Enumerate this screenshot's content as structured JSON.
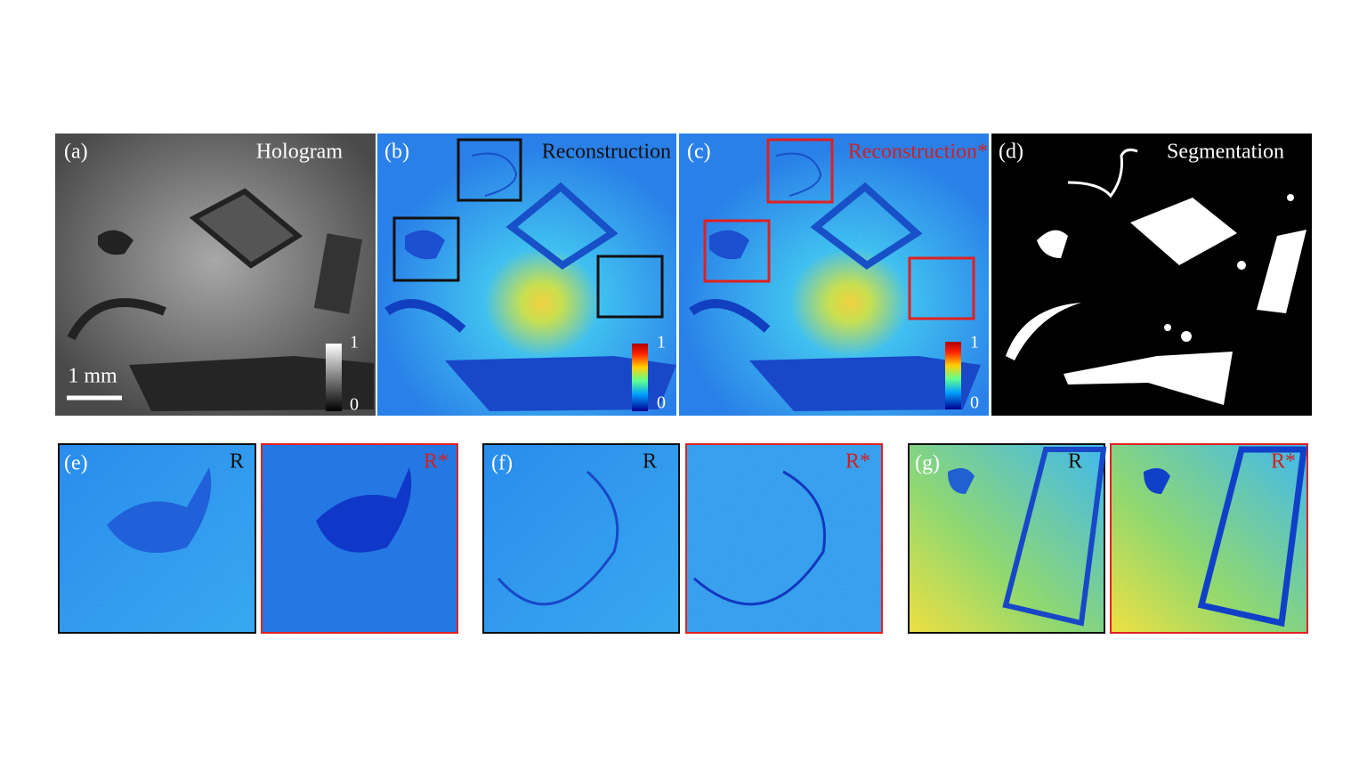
{
  "top_panels": [
    {
      "label": "(a)",
      "title": "Hologram",
      "scale_bar": "1 mm",
      "colorbar": {
        "max": 1,
        "min": 0
      }
    },
    {
      "label": "(b)",
      "title": "Reconstruction",
      "colorbar": {
        "max": 1,
        "min": 0
      }
    },
    {
      "label": "(c)",
      "title": "Reconstruction*",
      "colorbar": {
        "max": 1,
        "min": 0
      }
    },
    {
      "label": "(d)",
      "title": "Segmentation"
    }
  ],
  "bottom_panels": [
    {
      "label": "(e)",
      "left": "R",
      "right": "R*"
    },
    {
      "label": "(f)",
      "left": "R",
      "right": "R*"
    },
    {
      "label": "(g)",
      "left": "R",
      "right": "R*"
    }
  ]
}
